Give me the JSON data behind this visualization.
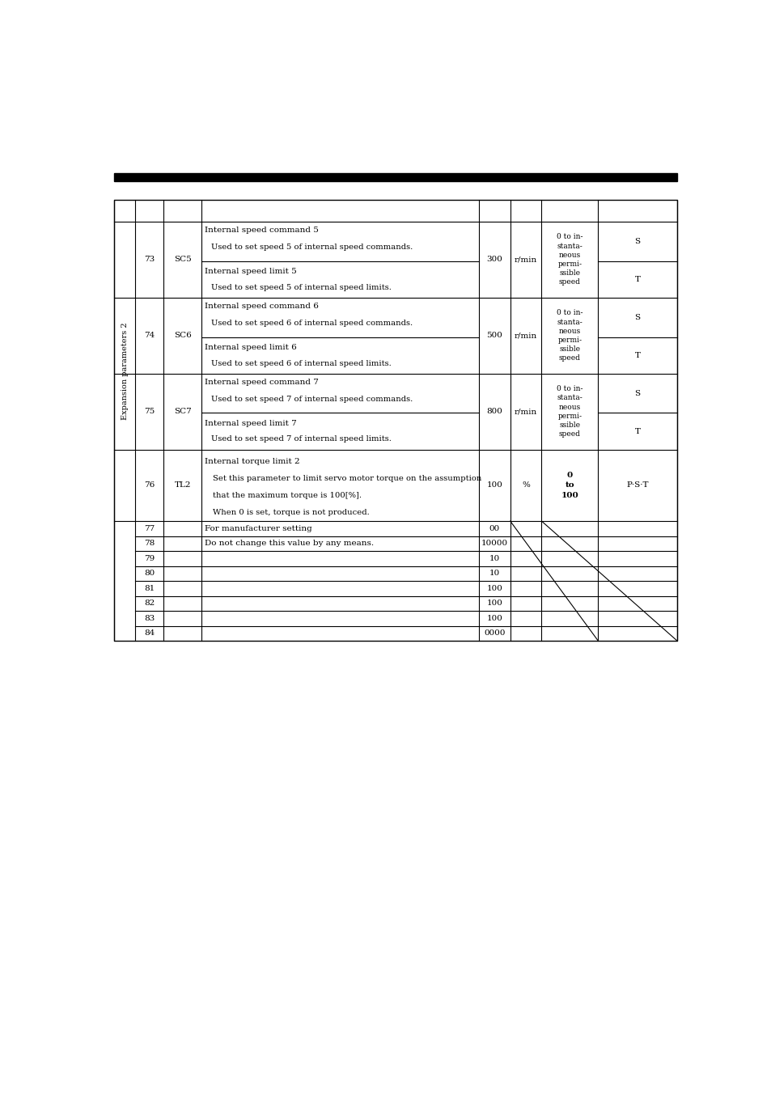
{
  "bg_color": "#ffffff",
  "font_size": 7.5,
  "vertical_label": "Expansion parameters 2",
  "rows": [
    {
      "no": "73",
      "symbol": "SC5",
      "top_desc_bold": "Internal speed command 5",
      "top_desc_indent": "Used to set speed 5 of internal speed commands.",
      "bot_desc_bold": "Internal speed limit 5",
      "bot_desc_indent": "Used to set speed 5 of internal speed limits.",
      "initial": "300",
      "unit": "r/min",
      "setting_range": "0 to in-\nstanta-\nneous\npermi-\nssible\nspeed",
      "ctrl_top": "S",
      "ctrl_bot": "T",
      "has_sub": true
    },
    {
      "no": "74",
      "symbol": "SC6",
      "top_desc_bold": "Internal speed command 6",
      "top_desc_indent": "Used to set speed 6 of internal speed commands.",
      "bot_desc_bold": "Internal speed limit 6",
      "bot_desc_indent": "Used to set speed 6 of internal speed limits.",
      "initial": "500",
      "unit": "r/min",
      "setting_range": "0 to in-\nstanta-\nneous\npermi-\nssible\nspeed",
      "ctrl_top": "S",
      "ctrl_bot": "T",
      "has_sub": true
    },
    {
      "no": "75",
      "symbol": "SC7",
      "top_desc_bold": "Internal speed command 7",
      "top_desc_indent": "Used to set speed 7 of internal speed commands.",
      "bot_desc_bold": "Internal speed limit 7",
      "bot_desc_indent": "Used to set speed 7 of internal speed limits.",
      "initial": "800",
      "unit": "r/min",
      "setting_range": "0 to in-\nstanta-\nneous\npermi-\nssible\nspeed",
      "ctrl_top": "S",
      "ctrl_bot": "T",
      "has_sub": true
    },
    {
      "no": "76",
      "symbol": "TL2",
      "top_desc_bold": "Internal torque limit 2",
      "top_desc_lines": [
        "Set this parameter to limit servo motor torque on the assumption",
        "that the maximum torque is 100[%].",
        "When 0 is set, torque is not produced."
      ],
      "initial": "100",
      "unit": "%",
      "setting_range": "0\nto\n100",
      "ctrl_mode": "P·S·T",
      "has_sub": false
    }
  ],
  "manufacturer_rows": [
    {
      "no": "77",
      "initial": "00",
      "desc": "For manufacturer setting"
    },
    {
      "no": "78",
      "initial": "10000",
      "desc": "Do not change this value by any means."
    },
    {
      "no": "79",
      "initial": "10",
      "desc": ""
    },
    {
      "no": "80",
      "initial": "10",
      "desc": ""
    },
    {
      "no": "81",
      "initial": "100",
      "desc": ""
    },
    {
      "no": "82",
      "initial": "100",
      "desc": ""
    },
    {
      "no": "83",
      "initial": "100",
      "desc": ""
    },
    {
      "no": "84",
      "initial": "0000",
      "desc": ""
    }
  ]
}
